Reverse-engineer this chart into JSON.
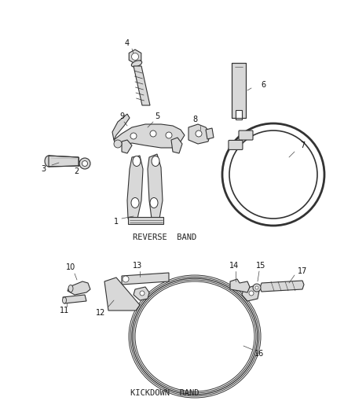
{
  "background_color": "#ffffff",
  "fig_width": 4.38,
  "fig_height": 5.33,
  "dpi": 100,
  "reverse_band_label": "REVERSE  BAND",
  "kickdown_band_label": "KICKDOWN  BAND",
  "label_fontsize": 7.5,
  "number_fontsize": 7.0,
  "line_color": "#444444",
  "part_fill": "#d8d8d8",
  "part_edge": "#333333",
  "lw": 0.8
}
